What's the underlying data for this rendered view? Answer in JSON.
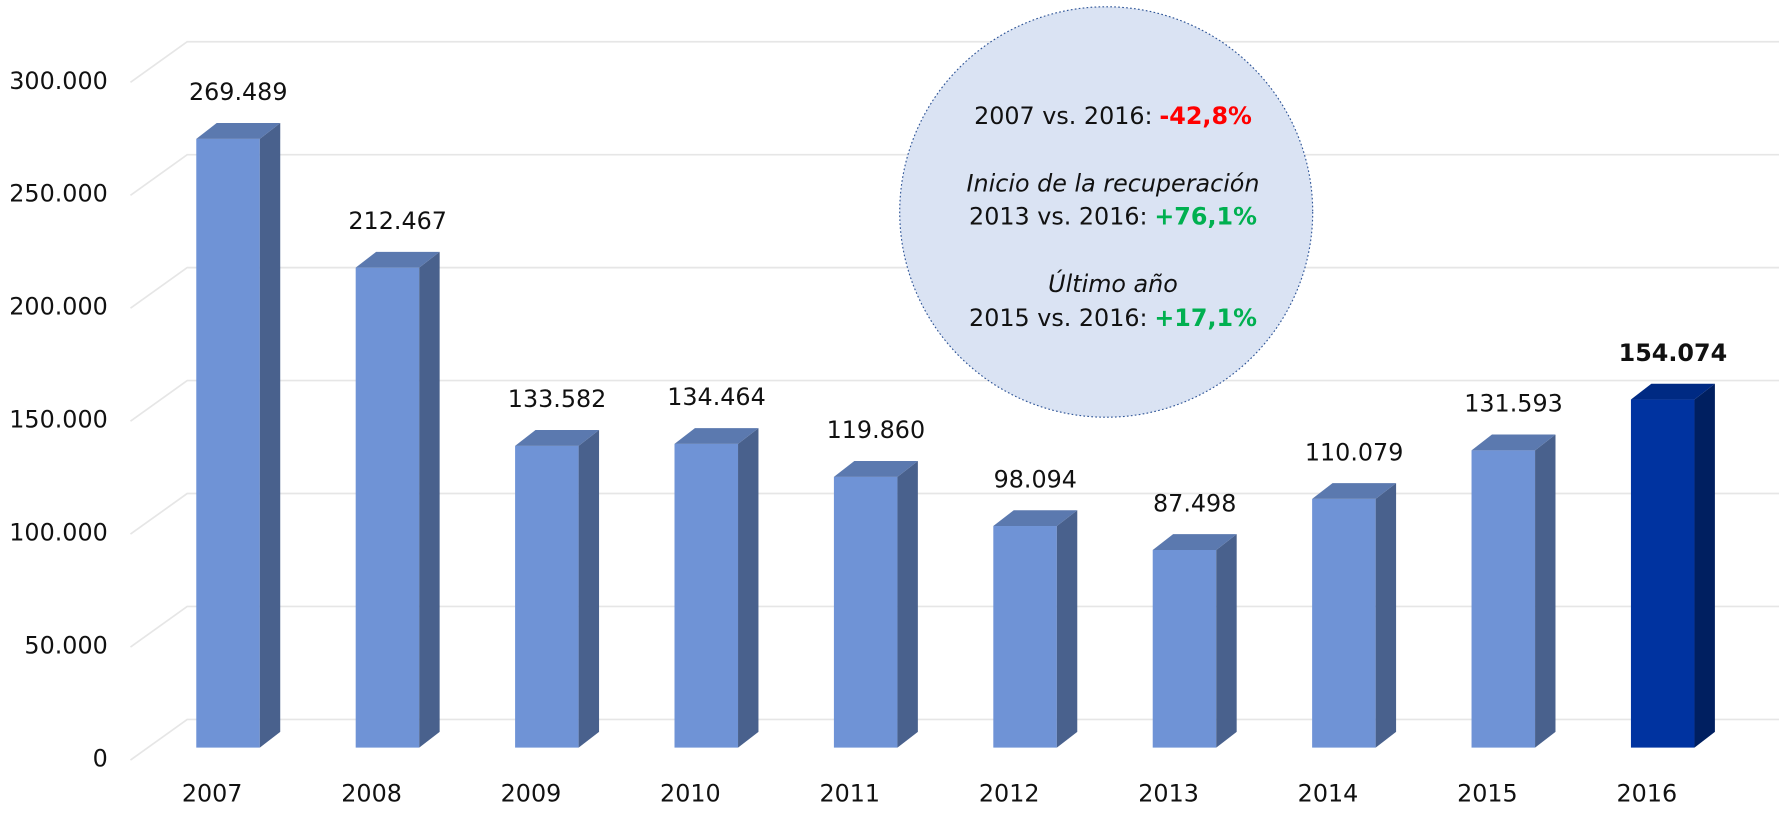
{
  "chart_data": {
    "type": "bar3d",
    "categories": [
      "2007",
      "2008",
      "2009",
      "2010",
      "2011",
      "2012",
      "2013",
      "2014",
      "2015",
      "2016"
    ],
    "values": [
      269489,
      212467,
      133582,
      134464,
      119860,
      98094,
      87498,
      110079,
      131593,
      154074
    ],
    "value_labels": [
      "269.489",
      "212.467",
      "133.582",
      "134.464",
      "119.860",
      "98.094",
      "87.498",
      "110.079",
      "131.593",
      "154.074"
    ],
    "color": "#6f93d6",
    "colors": [
      "#6f93d6",
      "#6f93d6",
      "#6f93d6",
      "#6f93d6",
      "#6f93d6",
      "#6f93d6",
      "#6f93d6",
      "#6f93d6",
      "#6f93d6",
      "#0033a0"
    ],
    "ylim": [
      0,
      300000
    ],
    "yticks": [
      0,
      {
        "value": 50000,
        "label": "50.000"
      },
      {
        "value": 100000,
        "label": "100.000"
      },
      {
        "value": 150000,
        "label": "150.000"
      },
      {
        "value": 200000,
        "label": "200.000"
      },
      {
        "value": 250000,
        "label": "250.000"
      },
      {
        "value": 300000,
        "label": "300.000"
      }
    ],
    "grid": true,
    "annotations": [
      {
        "text": "2007 vs. 2016:",
        "highlight": "-42,8%",
        "color": "#ff0000"
      },
      {
        "title": "Inicio de la recuperación",
        "text": "2013 vs. 2016:",
        "highlight": "+76,1%",
        "color": "#00b050"
      },
      {
        "title": "Último año",
        "text": "2015 vs. 2016:",
        "highlight": "+17,1%",
        "color": "#00b050"
      }
    ]
  }
}
